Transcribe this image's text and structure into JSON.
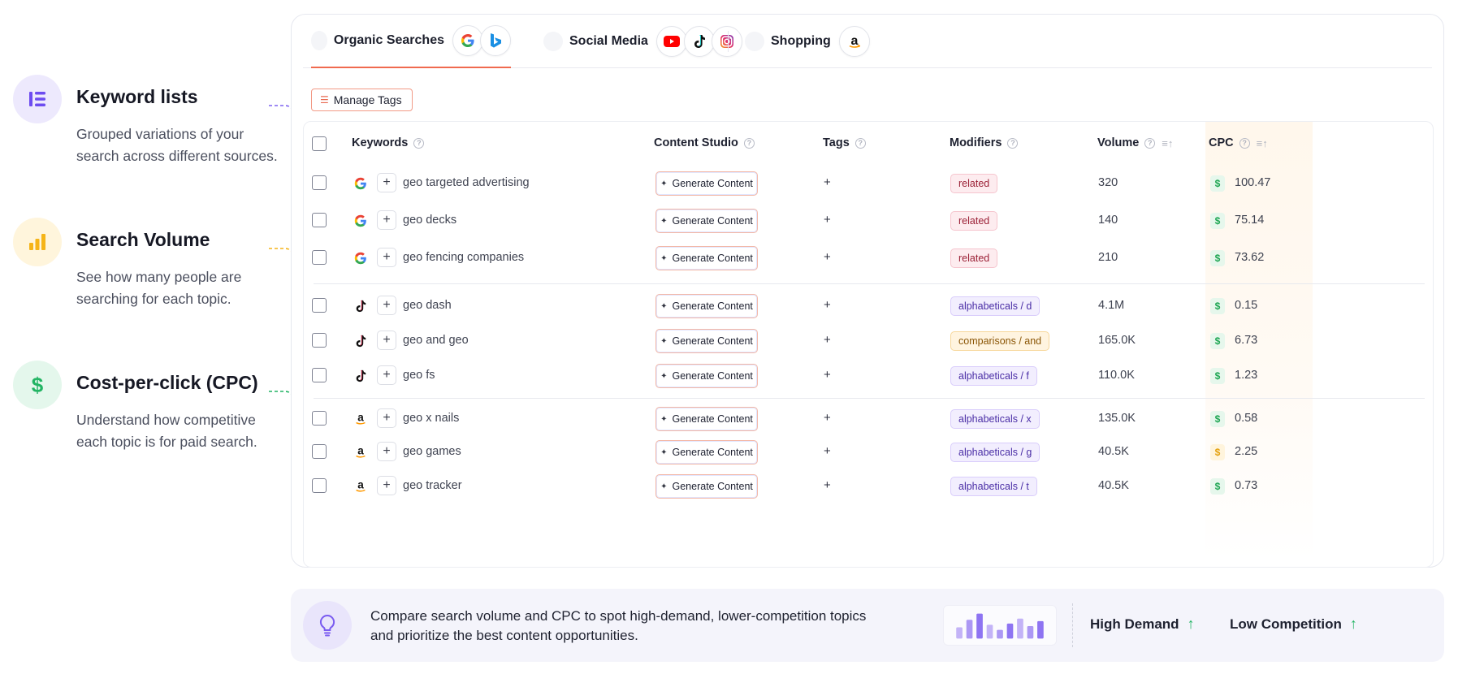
{
  "features": [
    {
      "title": "Keyword lists",
      "desc": "Grouped variations of your search across different sources.",
      "icon": "list-icon",
      "color": "#6d4cf0",
      "bg": "#ede9fd"
    },
    {
      "title": "Search Volume",
      "desc": "See how many people are searching for each topic.",
      "icon": "bar-chart-icon",
      "color": "#f5b418",
      "bg": "#fff5dc"
    },
    {
      "title": "Cost-per-click (CPC)",
      "desc": "Understand how competitive each topic is for paid search.",
      "icon": "dollar-icon",
      "color": "#22b463",
      "bg": "#e4f7ec"
    }
  ],
  "tabs": [
    {
      "label": "Organic Searches",
      "icons": [
        "google-icon",
        "bing-icon"
      ],
      "active": true
    },
    {
      "label": "Social Media",
      "icons": [
        "youtube-icon",
        "tiktok-icon",
        "instagram-icon"
      ],
      "active": false
    },
    {
      "label": "Shopping",
      "icons": [
        "amazon-icon"
      ],
      "active": false
    }
  ],
  "toolbar": {
    "manage_tags": "Manage Tags"
  },
  "columns": {
    "keywords": "Keywords",
    "content_studio": "Content Studio",
    "tags": "Tags",
    "modifiers": "Modifiers",
    "volume": "Volume",
    "cpc": "CPC"
  },
  "labels": {
    "generate": "Generate Content",
    "add": "+",
    "dollar": "$"
  },
  "rows": [
    {
      "source": "google",
      "keyword": "geo targeted advertising",
      "modifier": "related",
      "mod_type": "related",
      "volume": "320",
      "cpc": "100.47",
      "cpc_color": "green"
    },
    {
      "source": "google",
      "keyword": "geo decks",
      "modifier": "related",
      "mod_type": "related",
      "volume": "140",
      "cpc": "75.14",
      "cpc_color": "green"
    },
    {
      "source": "google",
      "keyword": "geo fencing companies",
      "modifier": "related",
      "mod_type": "related",
      "volume": "210",
      "cpc": "73.62",
      "cpc_color": "green"
    },
    {
      "source": "tiktok",
      "keyword": "geo dash",
      "modifier": "alphabeticals / d",
      "mod_type": "alpha",
      "volume": "4.1M",
      "cpc": "0.15",
      "cpc_color": "green"
    },
    {
      "source": "tiktok",
      "keyword": "geo and geo",
      "modifier": "comparisons / and",
      "mod_type": "comp",
      "volume": "165.0K",
      "cpc": "6.73",
      "cpc_color": "green"
    },
    {
      "source": "tiktok",
      "keyword": "geo fs",
      "modifier": "alphabeticals / f",
      "mod_type": "alpha",
      "volume": "110.0K",
      "cpc": "1.23",
      "cpc_color": "green"
    },
    {
      "source": "amazon",
      "keyword": "geo x nails",
      "modifier": "alphabeticals / x",
      "mod_type": "alpha",
      "volume": "135.0K",
      "cpc": "0.58",
      "cpc_color": "green"
    },
    {
      "source": "amazon",
      "keyword": "geo games",
      "modifier": "alphabeticals / g",
      "mod_type": "alpha",
      "volume": "40.5K",
      "cpc": "2.25",
      "cpc_color": "amber"
    },
    {
      "source": "amazon",
      "keyword": "geo tracker",
      "modifier": "alphabeticals / t",
      "mod_type": "alpha",
      "volume": "40.5K",
      "cpc": "0.73",
      "cpc_color": "green"
    }
  ],
  "tip": {
    "text": "Compare search volume and CPC to spot high-demand, lower-competition topics and prioritize the best content opportunities.",
    "metric1": "High Demand",
    "metric2": "Low Competition",
    "bars": [
      0.45,
      0.75,
      1.0,
      0.55,
      0.35,
      0.6,
      0.8,
      0.5,
      0.7
    ],
    "bar_colors": [
      "#b8a6f6",
      "#9d86f2",
      "#7a5cf0"
    ]
  }
}
